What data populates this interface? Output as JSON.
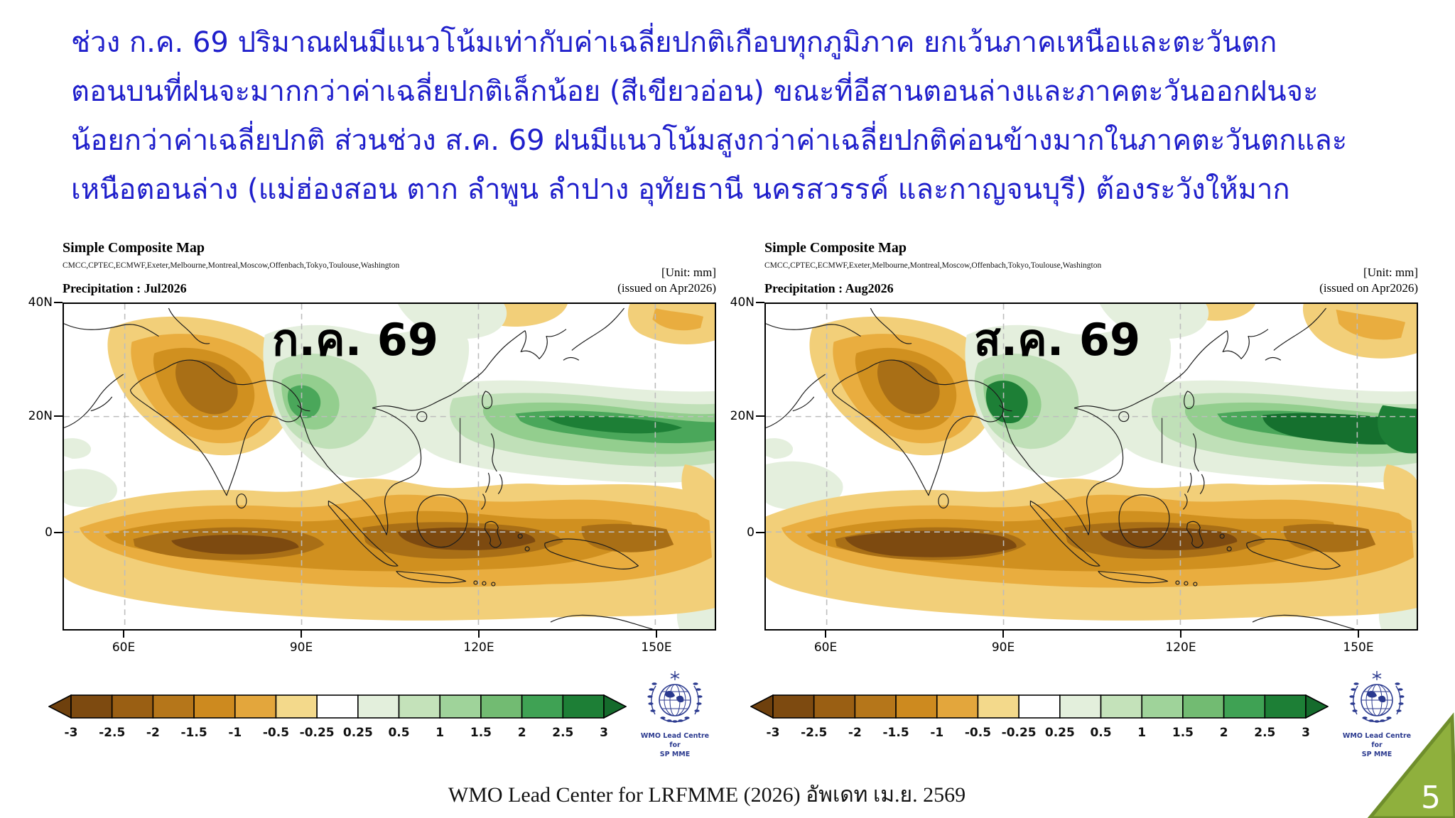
{
  "slide": {
    "paragraph_color": "#1f1fcb",
    "paragraph_lines": [
      "ช่วง ก.ค. 69 ปริมาณฝนมีแนวโน้มเท่ากับค่าเฉลี่ยปกติเกือบทุกภูมิภาค ยกเว้นภาคเหนือและตะวันตก",
      "ตอนบนที่ฝนจะมากกว่าค่าเฉลี่ยปกติเล็กน้อย (สีเขียวอ่อน) ขณะที่อีสานตอนล่างและภาคตะวันออกฝนจะ",
      "น้อยกว่าค่าเฉลี่ยปกติ ส่วนช่วง ส.ค. 69 ฝนมีแนวโน้มสูงกว่าค่าเฉลี่ยปกติค่อนข้างมากในภาคตะวันตกและ",
      "เหนือตอนล่าง (แม่ฮ่องสอน ตาก ลำพูน ลำปาง อุทัยธานี นครสวรรค์ และกาญจนบุรี) ต้องระวังให้มาก"
    ],
    "footer_text": "WMO Lead Center for LRFMME (2026) อัพเดท เม.ย. 2569",
    "page_number": "5",
    "page_corner_fill": "#8fb03d",
    "page_corner_edge": "#6f8e2c"
  },
  "panels": [
    {
      "title": "Simple Composite Map",
      "models_line": "CMCC,CPTEC,ECMWF,Exeter,Melbourne,Montreal,Moscow,Offenbach,Tokyo,Toulouse,Washington",
      "unit_label": "[Unit: mm]",
      "variable_label": "Precipitation : Jul2026",
      "issued_label": "(issued on Apr2026)",
      "overlay_label": "ก.ค. 69",
      "y_ticks": [
        "40N",
        "20N",
        "0"
      ],
      "x_ticks": [
        "60E",
        "90E",
        "120E",
        "150E"
      ]
    },
    {
      "title": "Simple Composite Map",
      "models_line": "CMCC,CPTEC,ECMWF,Exeter,Melbourne,Montreal,Moscow,Offenbach,Tokyo,Toulouse,Washington",
      "unit_label": "[Unit: mm]",
      "variable_label": "Precipitation : Aug2026",
      "issued_label": "(issued on Apr2026)",
      "overlay_label": "ส.ค. 69",
      "y_ticks": [
        "40N",
        "20N",
        "0"
      ],
      "x_ticks": [
        "60E",
        "90E",
        "120E",
        "150E"
      ]
    }
  ],
  "colorbar": {
    "tick_labels": [
      "-3",
      "-2.5",
      "-2",
      "-1.5",
      "-1",
      "-0.5",
      "-0.25",
      "0.25",
      "0.5",
      "1",
      "1.5",
      "2",
      "2.5",
      "3"
    ],
    "cell_colors": [
      "#7d4a10",
      "#9a5f13",
      "#b5761a",
      "#cd8a1f",
      "#e3a63c",
      "#f3d98b",
      "#ffffff",
      "#e3efdc",
      "#c4e2ba",
      "#9fd39a",
      "#72bb72",
      "#3fa254",
      "#1d7f36"
    ],
    "left_arrow_color": "#6e400d",
    "right_arrow_color": "#156b2c"
  },
  "logo": {
    "caption_line1": "WMO Lead Centre for",
    "caption_line2": "SP MME",
    "color": "#2b3a8f"
  }
}
